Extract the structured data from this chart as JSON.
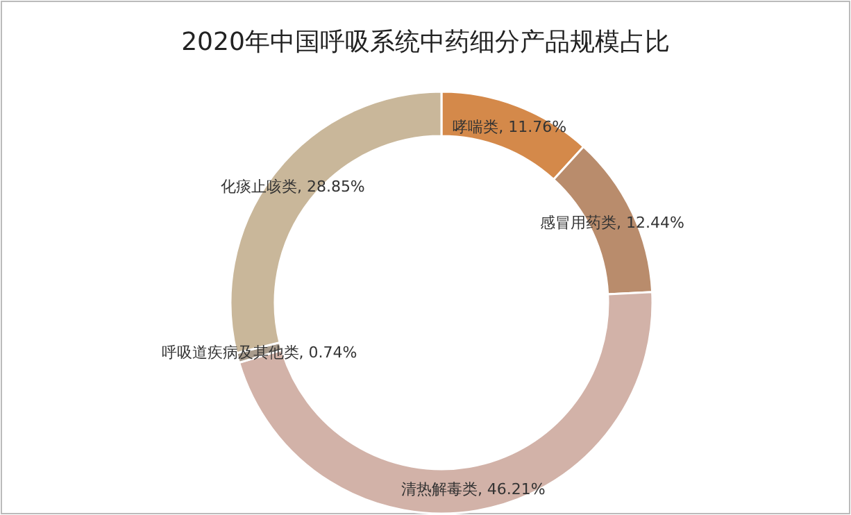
{
  "chart_data": {
    "type": "donut",
    "title": "2020年中国呼吸系统中药细分产品规模占比",
    "categories": [
      "哮喘类",
      "感冒用药类",
      "清热解毒类",
      "呼吸道疾病及其他类",
      "化痰止咳类"
    ],
    "values": [
      11.76,
      12.44,
      46.21,
      0.74,
      28.85
    ],
    "value_labels": [
      ", 11.76%",
      ", 12.44%",
      ", 46.21%",
      ", 0.74%",
      ", 28.85%"
    ],
    "colors": [
      "#d4894a",
      "#b98c6c",
      "#d2b2a8",
      "#a89b8c",
      "#c9b79a"
    ]
  }
}
